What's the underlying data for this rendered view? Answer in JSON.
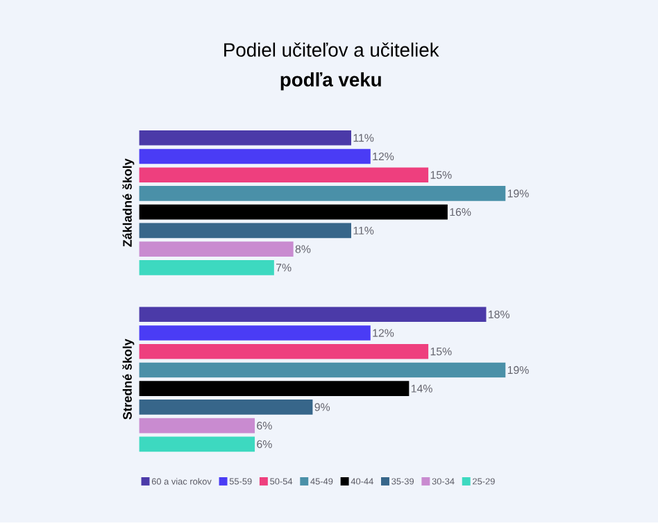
{
  "chart_data": {
    "type": "bar",
    "orientation": "horizontal",
    "title": "Podiel učiteľov a učiteliek",
    "subtitle": "podľa veku",
    "categories": [
      "Základné školy",
      "Stredné školy"
    ],
    "series": [
      {
        "name": "60 a viac rokov",
        "color": "#4b3aa8",
        "values": [
          11,
          18
        ],
        "value_labels": [
          "11%",
          "18%"
        ]
      },
      {
        "name": "55-59",
        "color": "#4a3cf5",
        "values": [
          12,
          12
        ],
        "value_labels": [
          "12%",
          "12%"
        ]
      },
      {
        "name": "50-54",
        "color": "#ee3f7e",
        "values": [
          15,
          15
        ],
        "value_labels": [
          "15%",
          "15%"
        ]
      },
      {
        "name": "45-49",
        "color": "#4a90a8",
        "values": [
          19,
          19
        ],
        "value_labels": [
          "19%",
          "19%"
        ]
      },
      {
        "name": "40-44",
        "color": "#000000",
        "values": [
          16,
          14
        ],
        "value_labels": [
          "16%",
          "14%"
        ]
      },
      {
        "name": "35-39",
        "color": "#37668a",
        "values": [
          11,
          9
        ],
        "value_labels": [
          "11%",
          "9%"
        ]
      },
      {
        "name": "30-34",
        "color": "#c98bd0",
        "values": [
          8,
          6
        ],
        "value_labels": [
          "8%",
          "6%"
        ]
      },
      {
        "name": "25-29",
        "color": "#3dd9c0",
        "values": [
          7,
          6
        ],
        "value_labels": [
          "7%",
          "6%"
        ]
      }
    ],
    "legend": "bottom"
  }
}
